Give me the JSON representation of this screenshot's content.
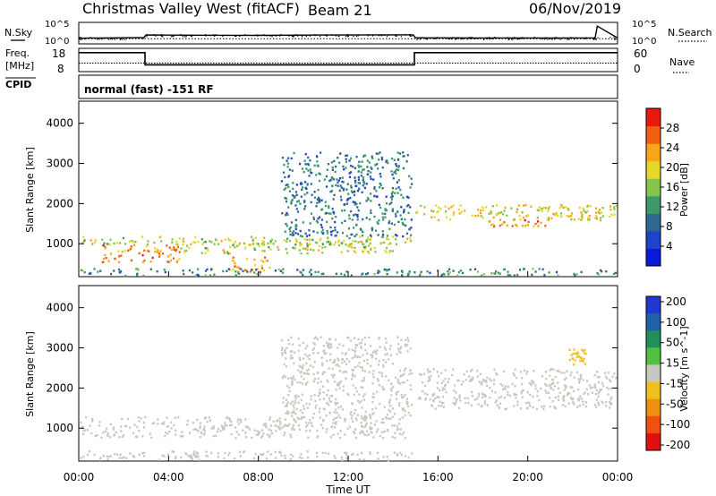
{
  "header": {
    "station": "Christmas Valley West (fitACF)",
    "beam": "Beam 21",
    "date": "06/Nov/2019"
  },
  "side_labels": {
    "nsky": "N.Sky",
    "freq_line1": "Freq.",
    "freq_line2": "[MHz]",
    "cpid": "CPID",
    "nsearch": "N.Search",
    "nave": "Nave"
  },
  "cpid_text": "normal (fast) -151 RF",
  "colors": {
    "trace": "#000000",
    "noise": "#000000",
    "missing": "#bfbfbf"
  },
  "chart_data": [
    {
      "type": "line",
      "name": "noise",
      "y_ticks_left": [
        "10^5",
        "10^0"
      ],
      "y_ticks_right": [
        "10^5",
        "10^0"
      ],
      "x_range": [
        0,
        24
      ],
      "series": [
        {
          "name": "N.Sky",
          "x": [
            0,
            0.5,
            1,
            2,
            2.9,
            3,
            5,
            8,
            11,
            14,
            14.9,
            15,
            18,
            21,
            23,
            23.1,
            24
          ],
          "y": [
            0.28,
            0.3,
            0.3,
            0.31,
            0.32,
            0.45,
            0.44,
            0.43,
            0.45,
            0.46,
            0.46,
            0.31,
            0.3,
            0.3,
            0.3,
            0.9,
            0.3
          ]
        },
        {
          "name": "N.Search",
          "x": [
            0,
            24
          ],
          "y": [
            0.26,
            0.26
          ]
        }
      ]
    },
    {
      "type": "line",
      "name": "frequency",
      "ylabel": "Freq. [MHz]",
      "y_ticks_left": [
        18,
        8
      ],
      "y_ticks_right": [
        60,
        0
      ],
      "x_range": [
        0,
        24
      ],
      "series": [
        {
          "name": "Freq",
          "x": [
            0,
            2.95,
            2.95,
            14.95,
            14.95,
            24
          ],
          "y": [
            16.8,
            16.8,
            10.5,
            10.5,
            16.8,
            16.8
          ]
        },
        {
          "name": "Nave",
          "x": [
            0,
            24
          ],
          "y": [
            11.4,
            11.4
          ]
        }
      ]
    },
    {
      "type": "heatmap",
      "name": "power",
      "ylabel": "Slant Range [km]",
      "colorbar_label": "Power [dB]",
      "x_range": [
        0,
        24
      ],
      "ylim": [
        180,
        4550
      ],
      "y_ticks": [
        1000,
        2000,
        3000,
        4000
      ],
      "colorbar_range": [
        0,
        32
      ],
      "colorbar_ticks": [
        4,
        8,
        12,
        16,
        20,
        24,
        28
      ],
      "colorbar_colors": [
        "#0a18d8",
        "#1f44c8",
        "#2f6890",
        "#3c9a6a",
        "#86c44a",
        "#e8d62a",
        "#f7a718",
        "#f06010",
        "#e81a10"
      ],
      "features": [
        {
          "t": [
            0.0,
            15.0
          ],
          "range": [
            1000,
            1200
          ],
          "level": 18
        },
        {
          "t": [
            1.0,
            4.5
          ],
          "range": [
            550,
            1000
          ],
          "level": 26
        },
        {
          "t": [
            4.5,
            14.0
          ],
          "range": [
            780,
            1100
          ],
          "level": 18
        },
        {
          "t": [
            6.5,
            8.5
          ],
          "range": [
            300,
            700
          ],
          "level": 24
        },
        {
          "t": [
            15.0,
            24.0
          ],
          "range": [
            1600,
            2000
          ],
          "level": 20
        },
        {
          "t": [
            18.0,
            21.0
          ],
          "range": [
            1450,
            1650
          ],
          "level": 26
        },
        {
          "t": [
            9.0,
            14.8
          ],
          "range": [
            1200,
            3300
          ],
          "level": 9
        },
        {
          "t": [
            0.0,
            24.0
          ],
          "range": [
            200,
            400
          ],
          "level": 10
        }
      ]
    },
    {
      "type": "heatmap",
      "name": "velocity",
      "ylabel": "Slant Range [km]",
      "colorbar_label": "Velocity [m s^-1]",
      "x_label": "Time UT",
      "x_ticks": [
        "00:00",
        "04:00",
        "08:00",
        "12:00",
        "16:00",
        "20:00",
        "00:00"
      ],
      "x_range": [
        0,
        24
      ],
      "ylim": [
        180,
        4550
      ],
      "y_ticks": [
        1000,
        2000,
        3000,
        4000
      ],
      "colorbar_range": [
        -240,
        240
      ],
      "colorbar_ticks": [
        200,
        100,
        50,
        15,
        -15,
        -50,
        -100,
        -200
      ],
      "colorbar_colors": [
        "#2038d0",
        "#2060a8",
        "#20905a",
        "#50c040",
        "#c8c8c0",
        "#f0c020",
        "#f09010",
        "#f05010",
        "#e01010"
      ],
      "features": [
        {
          "t": [
            0.0,
            11.0
          ],
          "range": [
            780,
            1300
          ],
          "velocity": 0
        },
        {
          "t": [
            11.0,
            14.7
          ],
          "range": [
            780,
            1300
          ],
          "velocity": 20
        },
        {
          "t": [
            15.0,
            24.0
          ],
          "range": [
            1500,
            2500
          ],
          "velocity": 0
        },
        {
          "t": [
            0.0,
            15.0
          ],
          "range": [
            200,
            450
          ],
          "velocity": -20
        },
        {
          "t": [
            21.8,
            22.6
          ],
          "range": [
            2600,
            3000
          ],
          "velocity": -80
        },
        {
          "t": [
            9.0,
            14.8
          ],
          "range": [
            1200,
            3300
          ],
          "velocity": 0
        }
      ]
    }
  ]
}
